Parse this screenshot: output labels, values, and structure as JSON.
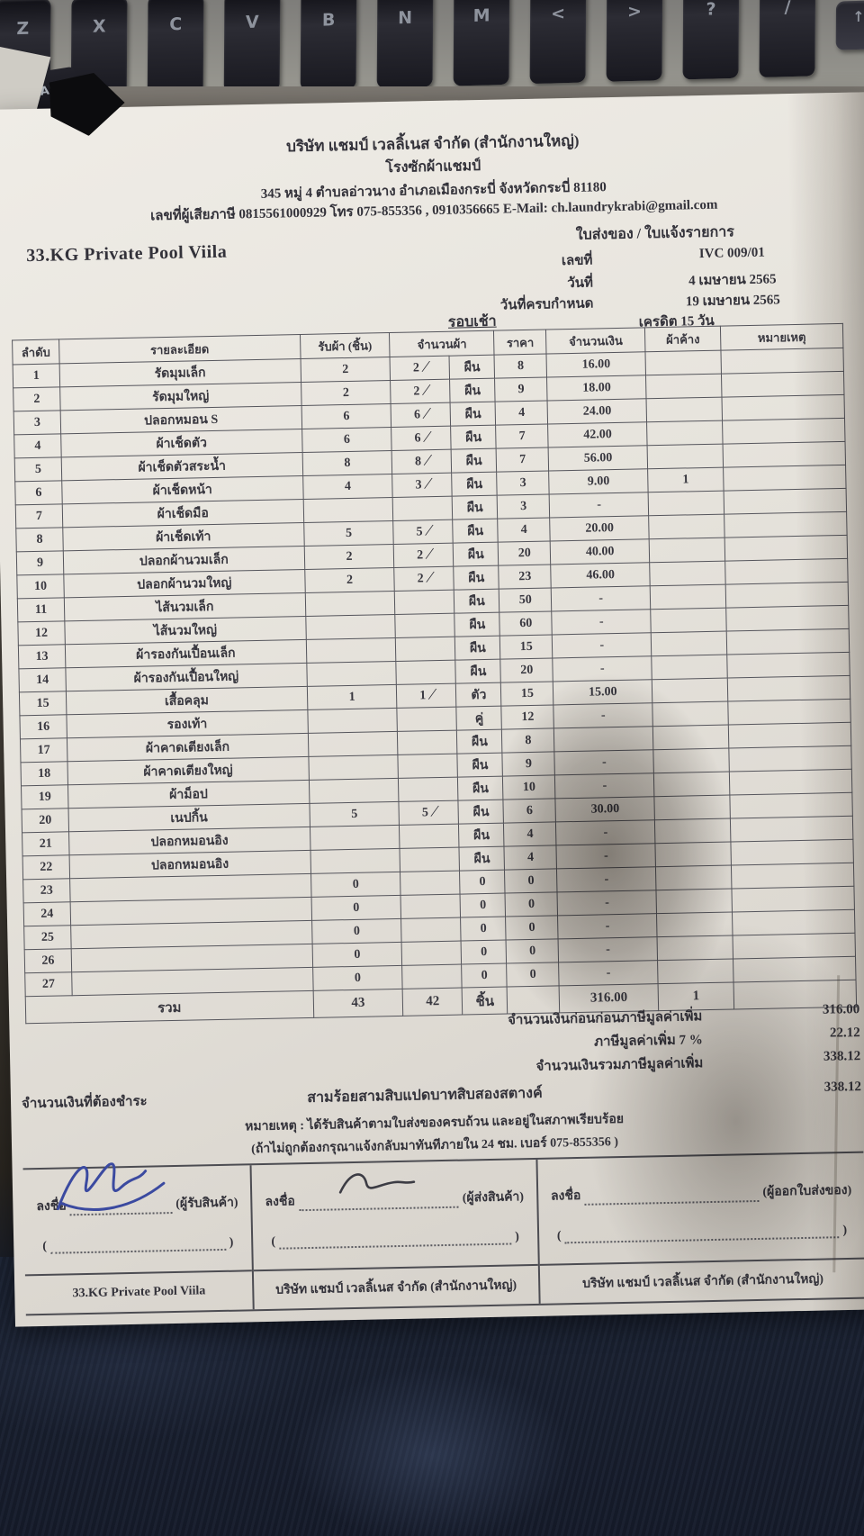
{
  "header": {
    "company_line1": "บริษัท แชมป์ เวลลิ้เนส จำกัด (สำนักงานใหญ่)",
    "company_line2": "โรงซักผ้าแชมป์",
    "address": "345 หมู่ 4 ตำบลอ่าวนาง อำเภอเมืองกระบี่ จังหวัดกระบี่ 81180",
    "tax_line": "เลขที่ผู้เสียภาษี 0815561000929 โทร 075-855356 , 0910356665 E-Mail: ch.laundrykrabi@gmail.com"
  },
  "doc_info": {
    "doc_type": "ใบส่งของ / ใบแจ้งรายการ",
    "no_label": "เลขที่",
    "no_value": "IVC 009/01",
    "date_label": "วันที่",
    "date_value": "4 เมษายน 2565",
    "due_label": "วันที่ครบกำหนด",
    "due_value": "19 เมษายน 2565",
    "credit": "เครดิต 15 วัน",
    "round": "รอบเช้า"
  },
  "customer": "33.KG Private Pool Viila",
  "table": {
    "headers": [
      "ลำดับ",
      "รายละเอียด",
      "รับผ้า (ชิ้น)",
      "จำนวนผ้า",
      "ราคา",
      "จำนวนเงิน",
      "ผ้าค้าง",
      "หมายเหตุ"
    ],
    "rows": [
      {
        "n": "1",
        "d": "รัดมุมเล็ก",
        "r": "2",
        "c": "2",
        "ck": true,
        "u": "ผืน",
        "p": "8",
        "a": "16.00",
        "b": ""
      },
      {
        "n": "2",
        "d": "รัดมุมใหญ่",
        "r": "2",
        "c": "2",
        "ck": true,
        "u": "ผืน",
        "p": "9",
        "a": "18.00",
        "b": ""
      },
      {
        "n": "3",
        "d": "ปลอกหมอน S",
        "r": "6",
        "c": "6",
        "ck": true,
        "u": "ผืน",
        "p": "4",
        "a": "24.00",
        "b": ""
      },
      {
        "n": "4",
        "d": "ผ้าเช็ดตัว",
        "r": "6",
        "c": "6",
        "ck": true,
        "u": "ผืน",
        "p": "7",
        "a": "42.00",
        "b": ""
      },
      {
        "n": "5",
        "d": "ผ้าเช็ดตัวสระน้ำ",
        "r": "8",
        "c": "8",
        "ck": true,
        "u": "ผืน",
        "p": "7",
        "a": "56.00",
        "b": ""
      },
      {
        "n": "6",
        "d": "ผ้าเช็ดหน้า",
        "r": "4",
        "c": "3",
        "ck": true,
        "u": "ผืน",
        "p": "3",
        "a": "9.00",
        "b": "1"
      },
      {
        "n": "7",
        "d": "ผ้าเช็ดมือ",
        "r": "",
        "c": "",
        "ck": false,
        "u": "ผืน",
        "p": "3",
        "a": "-",
        "b": ""
      },
      {
        "n": "8",
        "d": "ผ้าเช็ดเท้า",
        "r": "5",
        "c": "5",
        "ck": true,
        "u": "ผืน",
        "p": "4",
        "a": "20.00",
        "b": ""
      },
      {
        "n": "9",
        "d": "ปลอกผ้านวมเล็ก",
        "r": "2",
        "c": "2",
        "ck": true,
        "u": "ผืน",
        "p": "20",
        "a": "40.00",
        "b": ""
      },
      {
        "n": "10",
        "d": "ปลอกผ้านวมใหญ่",
        "r": "2",
        "c": "2",
        "ck": true,
        "u": "ผืน",
        "p": "23",
        "a": "46.00",
        "b": ""
      },
      {
        "n": "11",
        "d": "ไส้นวมเล็ก",
        "r": "",
        "c": "",
        "ck": false,
        "u": "ผืน",
        "p": "50",
        "a": "-",
        "b": ""
      },
      {
        "n": "12",
        "d": "ไส้นวมใหญ่",
        "r": "",
        "c": "",
        "ck": false,
        "u": "ผืน",
        "p": "60",
        "a": "-",
        "b": ""
      },
      {
        "n": "13",
        "d": "ผ้ารองกันเปื้อนเล็ก",
        "r": "",
        "c": "",
        "ck": false,
        "u": "ผืน",
        "p": "15",
        "a": "-",
        "b": ""
      },
      {
        "n": "14",
        "d": "ผ้ารองกันเปื้อนใหญ่",
        "r": "",
        "c": "",
        "ck": false,
        "u": "ผืน",
        "p": "20",
        "a": "-",
        "b": ""
      },
      {
        "n": "15",
        "d": "เสื้อคลุม",
        "r": "1",
        "c": "1",
        "ck": true,
        "u": "ตัว",
        "p": "15",
        "a": "15.00",
        "b": ""
      },
      {
        "n": "16",
        "d": "รองเท้า",
        "r": "",
        "c": "",
        "ck": false,
        "u": "คู่",
        "p": "12",
        "a": "-",
        "b": ""
      },
      {
        "n": "17",
        "d": "ผ้าคาดเตียงเล็ก",
        "r": "",
        "c": "",
        "ck": false,
        "u": "ผืน",
        "p": "8",
        "a": "",
        "b": ""
      },
      {
        "n": "18",
        "d": "ผ้าคาดเตียงใหญ่",
        "r": "",
        "c": "",
        "ck": false,
        "u": "ผืน",
        "p": "9",
        "a": "-",
        "b": ""
      },
      {
        "n": "19",
        "d": "ผ้าม็อป",
        "r": "",
        "c": "",
        "ck": false,
        "u": "ผืน",
        "p": "10",
        "a": "-",
        "b": ""
      },
      {
        "n": "20",
        "d": "เนปกิ้น",
        "r": "5",
        "c": "5",
        "ck": true,
        "u": "ผืน",
        "p": "6",
        "a": "30.00",
        "b": ""
      },
      {
        "n": "21",
        "d": "ปลอกหมอนอิง",
        "r": "",
        "c": "",
        "ck": false,
        "u": "ผืน",
        "p": "4",
        "a": "-",
        "b": ""
      },
      {
        "n": "22",
        "d": "ปลอกหมอนอิง",
        "r": "",
        "c": "",
        "ck": false,
        "u": "ผืน",
        "p": "4",
        "a": "-",
        "b": ""
      },
      {
        "n": "23",
        "d": "",
        "r": "0",
        "c": "",
        "ck": false,
        "u": "0",
        "p": "0",
        "a": "-",
        "b": ""
      },
      {
        "n": "24",
        "d": "",
        "r": "0",
        "c": "",
        "ck": false,
        "u": "0",
        "p": "0",
        "a": "-",
        "b": ""
      },
      {
        "n": "25",
        "d": "",
        "r": "0",
        "c": "",
        "ck": false,
        "u": "0",
        "p": "0",
        "a": "-",
        "b": ""
      },
      {
        "n": "26",
        "d": "",
        "r": "0",
        "c": "",
        "ck": false,
        "u": "0",
        "p": "0",
        "a": "-",
        "b": ""
      },
      {
        "n": "27",
        "d": "",
        "r": "0",
        "c": "",
        "ck": false,
        "u": "0",
        "p": "0",
        "a": "-",
        "b": ""
      }
    ],
    "total": {
      "label": "รวม",
      "received": "43",
      "count": "42",
      "unit": "ชิ้น",
      "price": "",
      "amount": "316.00",
      "remain": "1",
      "note": ""
    }
  },
  "summary": {
    "subtotal_label": "จำนวนเงินก่อนก่อนภาษีมูลค่าเพิ่ม",
    "subtotal_value": "316.00",
    "vat_label": "ภาษีมูลค่าเพิ่ม 7 %",
    "vat_value": "22.12",
    "grand_label": "จำนวนเงินรวมภาษีมูลค่าเพิ่ม",
    "grand_value": "338.12",
    "due_label": "จำนวนเงินที่ต้องชำระ",
    "amount_words": "สามร้อยสามสิบแปดบาทสิบสองสตางค์",
    "due_value": "338.12",
    "note1": "หมายเหตุ : ได้รับสินค้าตามใบส่งของครบถ้วน และอยู่ในสภาพเรียบร้อย",
    "note2": "(ถ้าไม่ถูกต้องกรุณาแจ้งกลับมาทันทีภายใน 24 ชม. เบอร์ 075-855356 )"
  },
  "signatures": {
    "sign_label": "ลงชื่อ",
    "open_paren": "(",
    "close_paren": ")",
    "blocks": [
      {
        "role": "(ผู้รับสินค้า)",
        "company": "33.KG Private Pool Viila",
        "signed": true
      },
      {
        "role": "(ผู้ส่งสินค้า)",
        "company": "บริษัท แชมป์ เวลลิ้เนส จำกัด (สำนักงานใหญ่)",
        "signed": true
      },
      {
        "role": "(ผู้ออกใบส่งของ)",
        "company": "บริษัท แชมป์ เวลลิ้เนส จำกัด (สำนักงานใหญ่)",
        "signed": false
      }
    ]
  },
  "keyboard": {
    "keys": [
      "Z",
      "X",
      "C",
      "V",
      "B",
      "N",
      "M",
      "<",
      ">",
      "?",
      "/"
    ],
    "arrow_key": "↑",
    "alt_key": "ALT"
  },
  "icons": {
    "check_mark": "∕"
  },
  "colors": {
    "signature_ink": "#3b4aa0",
    "print_ink": "#33323a",
    "paper": "#e7e4dd"
  }
}
